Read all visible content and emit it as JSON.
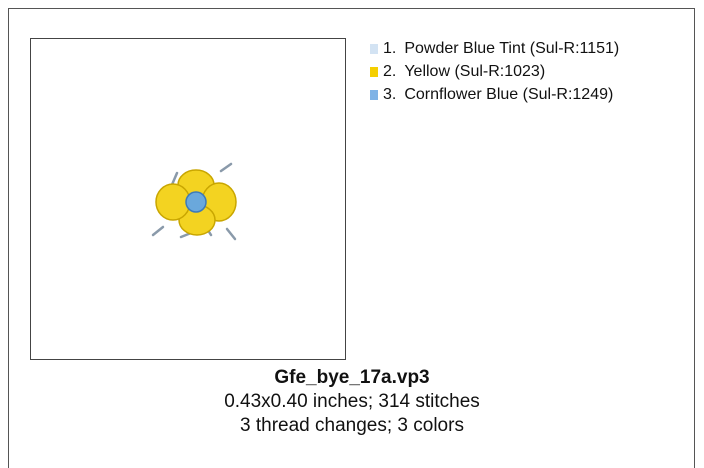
{
  "threads": [
    {
      "number": "1.",
      "name": "Powder Blue Tint (Sul-R:1151)",
      "color": "#d3e3f3"
    },
    {
      "number": "2.",
      "name": "Yellow (Sul-R:1023)",
      "color": "#f5cf00"
    },
    {
      "number": "3.",
      "name": "Cornflower Blue (Sul-R:1249)",
      "color": "#7fb3e6"
    }
  ],
  "file": {
    "name": "Gfe_bye_17a.vp3",
    "size": "0.43x0.40 inches; 314 stitches",
    "changes": "3 thread changes; 3 colors"
  }
}
